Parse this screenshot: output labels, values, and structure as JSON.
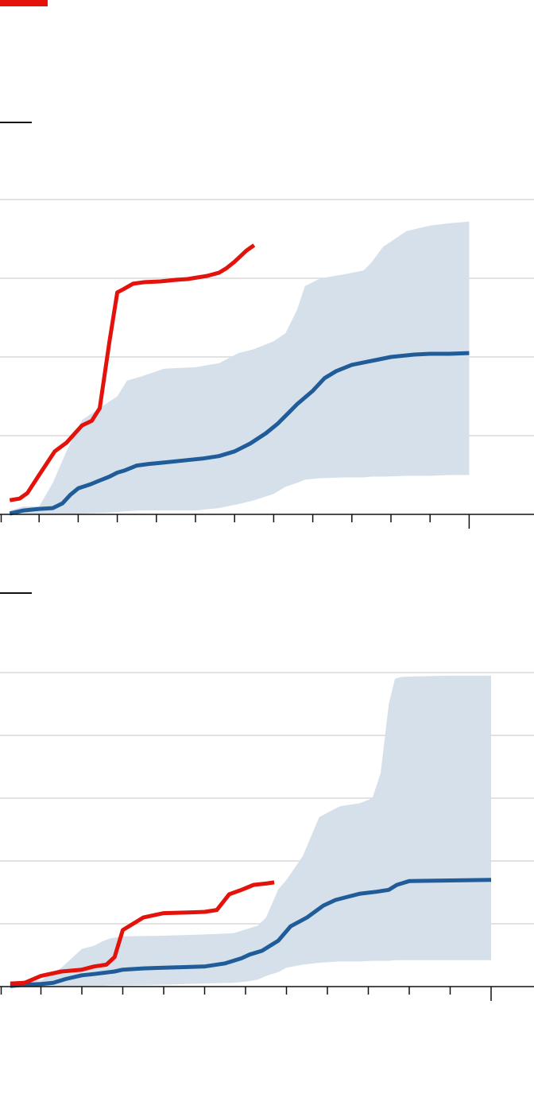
{
  "colors": {
    "brand": "#e3120b",
    "current_line": "#e3120b",
    "median_line": "#1f5c99",
    "range_band": "#d6e0ea",
    "grid": "#d9d9d9",
    "axis": "#111111"
  },
  "chart_data": [
    {
      "type": "line",
      "title": "",
      "xlabel": "",
      "ylabel": "",
      "grid": true,
      "xlim": [
        0,
        14
      ],
      "ylim": [
        0,
        4
      ],
      "x_ticks": [
        0,
        1,
        2,
        3,
        4,
        5,
        6,
        7,
        8,
        9,
        10,
        11,
        12
      ],
      "y_gridlines": [
        1,
        2,
        3,
        4
      ],
      "band": {
        "x": [
          0.25,
          0.6,
          1.0,
          1.35,
          1.7,
          2.1,
          2.7,
          3.0,
          3.25,
          3.6,
          4.2,
          5.0,
          5.6,
          6.1,
          6.5,
          7.0,
          7.3,
          7.6,
          7.8,
          8.2,
          8.8,
          9.3,
          9.5,
          9.8,
          10.4,
          11.0,
          11.5,
          12.0
        ],
        "upper": [
          0.05,
          0.1,
          0.1,
          0.4,
          0.8,
          1.2,
          1.4,
          1.5,
          1.7,
          1.75,
          1.85,
          1.87,
          1.92,
          2.05,
          2.1,
          2.2,
          2.3,
          2.6,
          2.9,
          3.0,
          3.05,
          3.1,
          3.2,
          3.4,
          3.6,
          3.67,
          3.7,
          3.72
        ],
        "lower": [
          0.0,
          0.0,
          0.0,
          0.0,
          0.0,
          0.01,
          0.02,
          0.03,
          0.04,
          0.05,
          0.05,
          0.05,
          0.08,
          0.13,
          0.18,
          0.26,
          0.35,
          0.4,
          0.44,
          0.46,
          0.47,
          0.47,
          0.48,
          0.48,
          0.49,
          0.49,
          0.5,
          0.5
        ]
      },
      "series": [
        {
          "x": [
            0.25,
            0.6,
            1.0,
            1.35,
            1.6,
            1.8,
            2.0,
            2.3,
            2.6,
            2.8,
            3.0,
            3.2,
            3.5,
            3.8,
            4.2,
            4.8,
            5.2,
            5.6,
            6.0,
            6.4,
            6.8,
            7.1,
            7.4,
            7.6,
            8.0,
            8.3,
            8.6,
            9.0,
            9.3,
            9.6,
            10.0,
            10.6,
            11.0,
            11.5,
            12.0
          ],
          "values": [
            0.01,
            0.05,
            0.07,
            0.08,
            0.14,
            0.25,
            0.33,
            0.38,
            0.44,
            0.48,
            0.53,
            0.56,
            0.62,
            0.64,
            0.66,
            0.69,
            0.71,
            0.74,
            0.8,
            0.9,
            1.03,
            1.15,
            1.3,
            1.4,
            1.57,
            1.73,
            1.82,
            1.9,
            1.93,
            1.96,
            2.0,
            2.03,
            2.04,
            2.04,
            2.05
          ]
        },
        {
          "x": [
            0.25,
            0.5,
            0.7,
            1.0,
            1.4,
            1.7,
            2.1,
            2.35,
            2.55,
            2.8,
            3.0,
            3.15,
            3.4,
            3.7,
            4.1,
            4.5,
            4.8,
            5.3,
            5.6,
            5.8,
            6.0,
            6.3,
            6.5
          ],
          "values": [
            0.18,
            0.2,
            0.27,
            0.5,
            0.8,
            0.91,
            1.13,
            1.19,
            1.35,
            2.2,
            2.82,
            2.86,
            2.93,
            2.95,
            2.96,
            2.98,
            2.99,
            3.03,
            3.07,
            3.13,
            3.21,
            3.35,
            3.42
          ]
        }
      ]
    },
    {
      "type": "line",
      "title": "",
      "xlabel": "",
      "ylabel": "",
      "grid": true,
      "xlim": [
        0,
        13
      ],
      "ylim": [
        0,
        5
      ],
      "x_ticks": [
        0,
        1,
        2,
        3,
        4,
        5,
        6,
        7,
        8,
        9,
        10,
        11,
        12
      ],
      "y_gridlines": [
        1,
        2,
        3,
        4,
        5
      ],
      "band": {
        "x": [
          0.25,
          0.6,
          1.0,
          1.5,
          2.0,
          2.3,
          2.5,
          2.7,
          3.0,
          4.0,
          5.0,
          5.7,
          6.0,
          6.3,
          6.5,
          6.8,
          7.0,
          7.4,
          7.8,
          8.3,
          8.8,
          9.1,
          9.3,
          9.5,
          9.65,
          9.8,
          10.2,
          11.0,
          12.0
        ],
        "upper": [
          0.05,
          0.1,
          0.1,
          0.3,
          0.6,
          0.65,
          0.72,
          0.77,
          0.8,
          0.81,
          0.83,
          0.85,
          0.91,
          0.97,
          1.1,
          1.55,
          1.7,
          2.08,
          2.7,
          2.87,
          2.92,
          3.0,
          3.4,
          4.5,
          4.9,
          4.93,
          4.94,
          4.95,
          4.95
        ],
        "lower": [
          0.0,
          0.0,
          0.0,
          0.0,
          0.0,
          0.01,
          0.01,
          0.02,
          0.02,
          0.03,
          0.05,
          0.06,
          0.08,
          0.11,
          0.17,
          0.23,
          0.3,
          0.35,
          0.38,
          0.4,
          0.4,
          0.41,
          0.41,
          0.41,
          0.42,
          0.42,
          0.42,
          0.42,
          0.42
        ]
      },
      "series": [
        {
          "x": [
            0.25,
            0.6,
            1.0,
            1.3,
            1.6,
            2.0,
            2.3,
            2.8,
            3.0,
            3.5,
            4.0,
            4.5,
            5.0,
            5.5,
            5.9,
            6.1,
            6.4,
            6.8,
            7.1,
            7.5,
            7.9,
            8.2,
            8.5,
            8.8,
            9.2,
            9.5,
            9.7,
            10.0,
            11.0,
            12.0
          ],
          "values": [
            0.01,
            0.03,
            0.04,
            0.06,
            0.12,
            0.18,
            0.2,
            0.24,
            0.27,
            0.29,
            0.3,
            0.31,
            0.32,
            0.37,
            0.45,
            0.51,
            0.57,
            0.73,
            0.96,
            1.1,
            1.29,
            1.38,
            1.43,
            1.48,
            1.51,
            1.54,
            1.62,
            1.68,
            1.69,
            1.7
          ]
        },
        {
          "x": [
            0.25,
            0.6,
            1.0,
            1.5,
            2.0,
            2.3,
            2.6,
            2.8,
            3.0,
            3.5,
            4.0,
            4.6,
            5.0,
            5.3,
            5.6,
            5.9,
            6.2,
            6.5,
            6.7
          ],
          "values": [
            0.05,
            0.06,
            0.17,
            0.24,
            0.27,
            0.32,
            0.35,
            0.47,
            0.9,
            1.1,
            1.17,
            1.18,
            1.19,
            1.22,
            1.47,
            1.54,
            1.62,
            1.64,
            1.66
          ]
        }
      ]
    }
  ]
}
